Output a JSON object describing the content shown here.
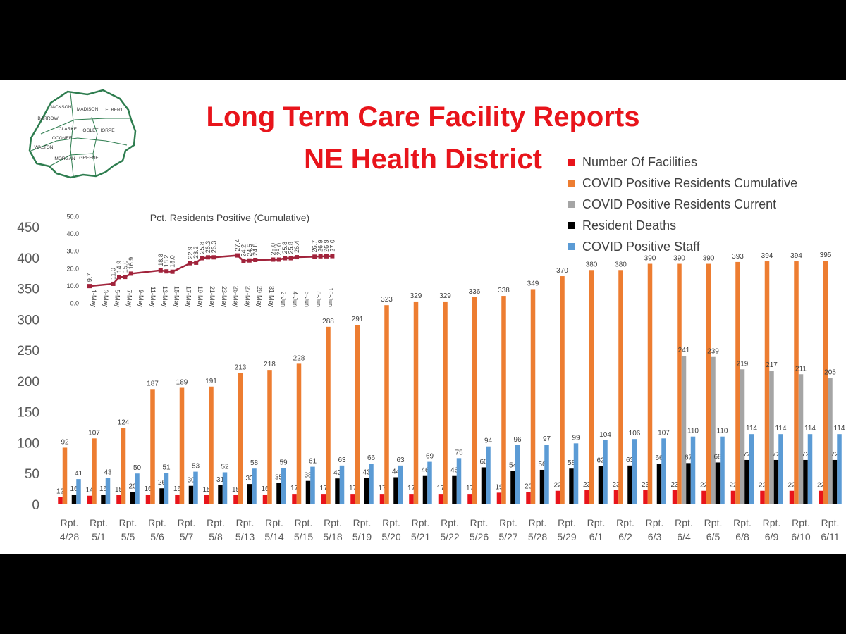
{
  "title_line1": "Long Term Care Facility Reports",
  "title_line2": "NE Health District",
  "map_counties": [
    "JACKSON",
    "MADISON",
    "ELBERT",
    "BARROW",
    "CLARKE",
    "OGLETHORPE",
    "OCONEE",
    "WALTON",
    "MORGAN",
    "GREENE"
  ],
  "colors": {
    "title": "#e8141b",
    "facilities": "#e8141b",
    "cumulative": "#ed7d31",
    "current": "#a5a5a5",
    "deaths": "#000000",
    "staff": "#5b9bd5",
    "inset_line": "#a1233b",
    "map": "#2e7d4f"
  },
  "chart_data": [
    {
      "type": "bar",
      "categories": [
        "Rpt. 4/28",
        "Rpt. 5/1",
        "Rpt. 5/5",
        "Rpt. 5/6",
        "Rpt. 5/7",
        "Rpt. 5/8",
        "Rpt. 5/13",
        "Rpt. 5/14",
        "Rpt. 5/15",
        "Rpt. 5/18",
        "Rpt. 5/19",
        "Rpt. 5/20",
        "Rpt. 5/21",
        "Rpt. 5/22",
        "Rpt. 5/26",
        "Rpt. 5/27",
        "Rpt. 5/28",
        "Rpt. 5/29",
        "Rpt. 6/1",
        "Rpt. 6/2",
        "Rpt. 6/3",
        "Rpt. 6/4",
        "Rpt. 6/5",
        "Rpt. 6/8",
        "Rpt. 6/9",
        "Rpt. 6/10",
        "Rpt. 6/11"
      ],
      "series": [
        {
          "name": "Number Of Facilities",
          "values": [
            12,
            14,
            15,
            16,
            16,
            15,
            15,
            16,
            17,
            17,
            17,
            17,
            17,
            17,
            17,
            19,
            20,
            22,
            23,
            23,
            23,
            23,
            22,
            22,
            22,
            22,
            22
          ]
        },
        {
          "name": "COVID Positive Residents Cumulative",
          "values": [
            92,
            107,
            124,
            187,
            189,
            191,
            213,
            218,
            228,
            288,
            291,
            323,
            329,
            329,
            336,
            338,
            349,
            370,
            380,
            380,
            390,
            390,
            390,
            393,
            394,
            394,
            395
          ]
        },
        {
          "name": "COVID Positive Residents Current",
          "values": [
            null,
            null,
            null,
            null,
            null,
            null,
            null,
            null,
            null,
            null,
            null,
            null,
            null,
            null,
            null,
            null,
            null,
            null,
            null,
            null,
            null,
            241,
            239,
            219,
            217,
            211,
            205
          ]
        },
        {
          "name": "Resident Deaths",
          "values": [
            16,
            16,
            20,
            26,
            30,
            31,
            33,
            35,
            38,
            42,
            43,
            44,
            46,
            46,
            60,
            54,
            56,
            58,
            62,
            63,
            66,
            67,
            68,
            72,
            72,
            72,
            72
          ]
        },
        {
          "name": "COVID Positive Staff",
          "values": [
            41,
            43,
            50,
            51,
            53,
            52,
            58,
            59,
            61,
            63,
            66,
            63,
            69,
            75,
            94,
            96,
            97,
            99,
            104,
            106,
            107,
            110,
            110,
            114,
            114,
            114,
            114
          ]
        }
      ],
      "ylim": [
        0,
        450
      ],
      "yticks": [
        0,
        50,
        100,
        150,
        200,
        250,
        300,
        350,
        400,
        450
      ],
      "grid": false,
      "legend": "top-right"
    },
    {
      "type": "line",
      "title": "Pct. Residents Positive (Cumulative)",
      "x_labels": [
        "1-May",
        "3-May",
        "5-May",
        "7-May",
        "9-May",
        "11-May",
        "13-May",
        "15-May",
        "17-May",
        "19-May",
        "21-May",
        "23-May",
        "25-May",
        "27-May",
        "29-May",
        "31-May",
        "2-Jun",
        "4-Jun",
        "6-Jun",
        "8-Jun",
        "10-Jun"
      ],
      "points": [
        {
          "day": 1,
          "value": 9.7
        },
        {
          "day": 5,
          "value": 11.0
        },
        {
          "day": 6,
          "value": 14.9
        },
        {
          "day": 7,
          "value": 15.0
        },
        {
          "day": 8,
          "value": 16.9
        },
        {
          "day": 13,
          "value": 18.8
        },
        {
          "day": 14,
          "value": 18.2
        },
        {
          "day": 15,
          "value": 18.0
        },
        {
          "day": 18,
          "value": 22.9
        },
        {
          "day": 19,
          "value": 23.2
        },
        {
          "day": 20,
          "value": 25.8
        },
        {
          "day": 21,
          "value": 26.3
        },
        {
          "day": 22,
          "value": 26.3
        },
        {
          "day": 26,
          "value": 27.4
        },
        {
          "day": 27,
          "value": 24.2
        },
        {
          "day": 28,
          "value": 24.5
        },
        {
          "day": 29,
          "value": 24.8
        },
        {
          "day": 32,
          "value": 25.0
        },
        {
          "day": 33,
          "value": 25.0
        },
        {
          "day": 34,
          "value": 25.8
        },
        {
          "day": 35,
          "value": 25.8
        },
        {
          "day": 36,
          "value": 26.4
        },
        {
          "day": 39,
          "value": 26.7
        },
        {
          "day": 40,
          "value": 26.9
        },
        {
          "day": 41,
          "value": 26.9
        },
        {
          "day": 42,
          "value": 27.0
        }
      ],
      "ylim": [
        0,
        50
      ],
      "yticks": [
        "0.0",
        "10.0",
        "20.0",
        "30.0",
        "40.0",
        "50.0"
      ],
      "grid": false
    }
  ]
}
